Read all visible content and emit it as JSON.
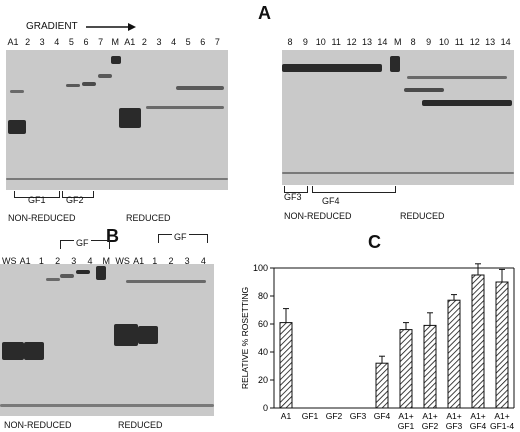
{
  "panel_a": {
    "letter": "A",
    "gradient_label": "GRADIENT",
    "gel1_lanes": [
      "A1",
      "2",
      "3",
      "4",
      "5",
      "6",
      "7",
      "M",
      "A1",
      "2",
      "3",
      "4",
      "5",
      "6",
      "7"
    ],
    "gel2_lanes": [
      "8",
      "9",
      "10",
      "11",
      "12",
      "13",
      "14",
      "M",
      "8",
      "9",
      "10",
      "11",
      "12",
      "13",
      "14"
    ],
    "gel1_groups": [
      "GF1",
      "GF2"
    ],
    "gel2_groups": [
      "GF3",
      "GF4"
    ],
    "nonreduced": "NON-REDUCED",
    "reduced": "REDUCED"
  },
  "panel_b": {
    "letter": "B",
    "gf_label": "GF",
    "lanes": [
      "WS",
      "A1",
      "1",
      "2",
      "3",
      "4",
      "M",
      "WS",
      "A1",
      "1",
      "2",
      "3",
      "4"
    ],
    "nonreduced": "NON-REDUCED",
    "reduced": "REDUCED"
  },
  "panel_c": {
    "letter": "C"
  },
  "chart_data": {
    "type": "bar",
    "categories": [
      "A1",
      "GF1",
      "GF2",
      "GF3",
      "GF4",
      "A1+ GF1",
      "A1+ GF2",
      "A1+ GF3",
      "A1+ GF4",
      "A1+ GF1-4"
    ],
    "values": [
      61,
      0,
      0,
      0,
      32,
      56,
      59,
      77,
      95,
      90
    ],
    "errors": [
      10,
      0,
      0,
      0,
      5,
      5,
      9,
      4,
      8,
      9
    ],
    "ylabel": "RELATIVE % ROSETTING",
    "ylim": [
      0,
      100
    ],
    "yticks": [
      0,
      20,
      40,
      60,
      80,
      100
    ],
    "pattern": "diagonal-hatch"
  }
}
